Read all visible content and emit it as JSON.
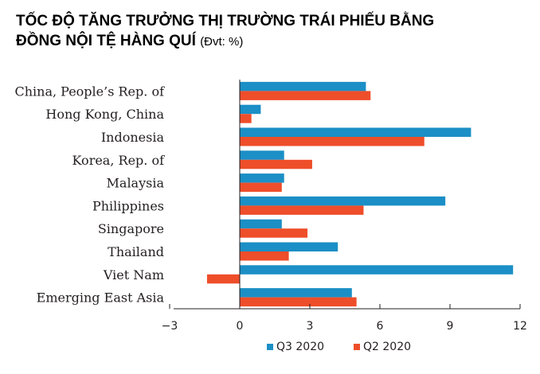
{
  "title": {
    "line1": "TỐC ĐỘ TĂNG TRƯỞNG THỊ TRƯỜNG TRÁI PHIẾU BẰNG",
    "line2": "ĐỒNG NỘI TỆ HÀNG QUÍ",
    "unit": "(Đvt: %)"
  },
  "chart_data": {
    "type": "bar",
    "orientation": "horizontal",
    "categories": [
      "China, People’s Rep. of",
      "Hong Kong, China",
      "Indonesia",
      "Korea, Rep. of",
      "Malaysia",
      "Philippines",
      "Singapore",
      "Thailand",
      "Viet Nam",
      "Emerging East Asia"
    ],
    "series": [
      {
        "name": "Q3 2020",
        "color": "#1b8fc6",
        "values": [
          5.4,
          0.9,
          9.9,
          1.9,
          1.9,
          8.8,
          1.8,
          4.2,
          11.7,
          4.8
        ]
      },
      {
        "name": "Q2 2020",
        "color": "#ee4e2a",
        "values": [
          5.6,
          0.5,
          7.9,
          3.1,
          1.8,
          5.3,
          2.9,
          2.1,
          -1.4,
          5.0
        ]
      }
    ],
    "xlim": [
      -3,
      12
    ],
    "xticks": [
      -3,
      0,
      3,
      6,
      9,
      12
    ],
    "xtick_labels": [
      "−3",
      "0",
      "3",
      "6",
      "9",
      "12"
    ],
    "grid": false,
    "legend_position": "bottom-center"
  }
}
